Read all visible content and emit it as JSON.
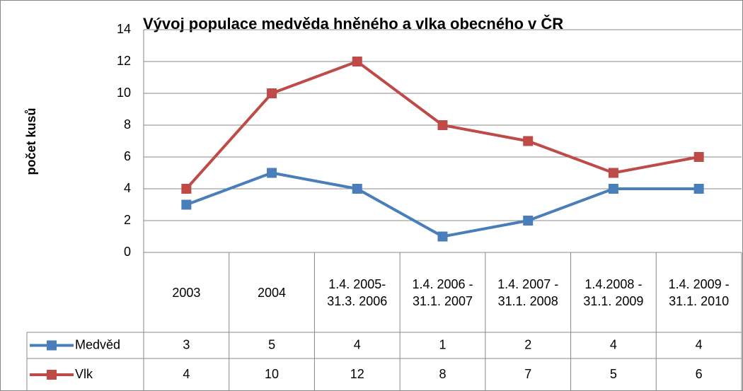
{
  "chart_data": {
    "type": "line",
    "title": "Vývoj populace medvěda hněného a vlka obecného v ČR",
    "ylabel": "počet kusů",
    "categories": [
      "2003",
      "2004",
      "1.4. 2005-31.3. 2006",
      "1.4. 2006 - 31.1. 2007",
      "1.4. 2007 - 31.1. 2008",
      "1.4.2008 - 31.1. 2009",
      "1.4. 2009 - 31.1. 2010"
    ],
    "series": [
      {
        "name": "Medvěd",
        "color": "#4a7ebb",
        "values": [
          3,
          5,
          4,
          1,
          2,
          4,
          4
        ]
      },
      {
        "name": "Vlk",
        "color": "#be4b48",
        "values": [
          4,
          10,
          12,
          8,
          7,
          5,
          6
        ]
      }
    ],
    "ylim": [
      0,
      14
    ],
    "yticks": [
      0,
      2,
      4,
      6,
      8,
      10,
      12,
      14
    ],
    "grid": true,
    "data_table": true
  }
}
